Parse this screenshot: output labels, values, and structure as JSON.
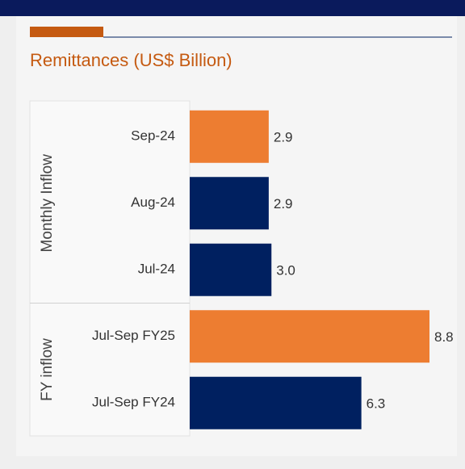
{
  "chart_data": {
    "type": "bar",
    "orientation": "horizontal",
    "title": "Remittances (US$ Billion)",
    "groups": [
      {
        "name": "Monthly Inflow",
        "categories": [
          "Sep-24",
          "Aug-24",
          "Jul-24"
        ],
        "values": [
          2.9,
          2.9,
          3.0
        ],
        "value_labels": [
          "2.9",
          "2.9",
          "3.0"
        ],
        "colors": [
          "#ed7d31",
          "#002060",
          "#002060"
        ]
      },
      {
        "name": "FY inflow",
        "categories": [
          "Jul-Sep FY25",
          "Jul-Sep FY24"
        ],
        "values": [
          8.8,
          6.3
        ],
        "value_labels": [
          "8.8",
          "6.3"
        ],
        "colors": [
          "#ed7d31",
          "#002060"
        ]
      }
    ]
  }
}
